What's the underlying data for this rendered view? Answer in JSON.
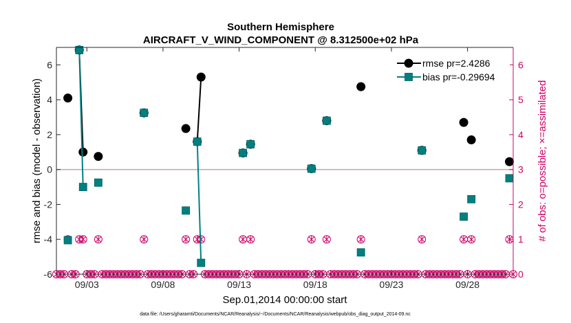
{
  "chart_data": {
    "type": "line",
    "title": "Southern Hemisphere",
    "subtitle": "AIRCRAFT_V_WIND_COMPONENT @ 8.312500e+02 hPa",
    "xlabel": "Sep.01,2014 00:00:00 start",
    "ylabel": "rmse and bias (model - observation)",
    "ylabel_right": "# of obs: o=possible; ×=assimilated",
    "footnote": "data file: /Users/gharamti/Documents/NCAR/Reanalysis/~/Documents/NCAR/Reanalysis/webpub/obs_diag_output_2014-09.nc",
    "xlim": [
      1.0,
      31.0
    ],
    "ylim": [
      -6,
      7
    ],
    "ylim_right": [
      0,
      6.5
    ],
    "x_ticks": [
      3,
      8,
      13,
      18,
      23,
      28
    ],
    "x_tick_labels": [
      "09/03",
      "09/08",
      "09/13",
      "09/18",
      "09/23",
      "09/28"
    ],
    "y_ticks": [
      -6,
      -4,
      -2,
      0,
      2,
      4,
      6
    ],
    "y_tick_labels": [
      "-6",
      "-4",
      "-2",
      "0",
      "2",
      "4",
      "6"
    ],
    "y_ticks_right": [
      0,
      1,
      2,
      3,
      4,
      5,
      6
    ],
    "y_tick_labels_right": [
      "0",
      "1",
      "2",
      "3",
      "4",
      "5",
      "6"
    ],
    "zero_line": 0,
    "legend_position": "top-right",
    "series": [
      {
        "name": "rmse pr=2.4286",
        "color": "#000000",
        "marker": "circle",
        "points": [
          [
            1.75,
            4.1
          ],
          [
            2.5,
            6.85
          ],
          [
            2.75,
            1.0
          ],
          [
            3.75,
            0.75
          ],
          [
            6.75,
            3.25
          ],
          [
            9.5,
            2.35
          ],
          [
            10.25,
            1.6
          ],
          [
            10.5,
            5.3
          ],
          [
            13.25,
            0.95
          ],
          [
            13.75,
            1.45
          ],
          [
            17.75,
            0.05
          ],
          [
            18.75,
            2.8
          ],
          [
            21.0,
            4.75
          ],
          [
            25.0,
            1.1
          ],
          [
            27.75,
            2.7
          ],
          [
            28.25,
            1.7
          ],
          [
            30.75,
            0.45
          ]
        ]
      },
      {
        "name": "bias pr=-0.29694",
        "color": "#008080",
        "marker": "square",
        "points": [
          [
            1.75,
            -4.05
          ],
          [
            2.5,
            6.85
          ],
          [
            2.75,
            -1.0
          ],
          [
            3.75,
            -0.75
          ],
          [
            6.75,
            3.25
          ],
          [
            9.5,
            -2.35
          ],
          [
            10.25,
            1.6
          ],
          [
            10.5,
            -5.35
          ],
          [
            13.25,
            0.95
          ],
          [
            13.75,
            1.45
          ],
          [
            17.75,
            0.05
          ],
          [
            18.75,
            2.8
          ],
          [
            21.0,
            -4.75
          ],
          [
            25.0,
            1.1
          ],
          [
            27.75,
            -2.7
          ],
          [
            28.25,
            -1.7
          ],
          [
            30.75,
            -0.5
          ]
        ]
      }
    ],
    "obs_count": {
      "color": "#cc0066",
      "possible_marker": "circle",
      "assimilated_marker": "x",
      "step": 0.25,
      "nonzero": [
        [
          1.75,
          1
        ],
        [
          2.5,
          1
        ],
        [
          2.75,
          1
        ],
        [
          3.75,
          1
        ],
        [
          6.75,
          1
        ],
        [
          9.5,
          1
        ],
        [
          10.25,
          1
        ],
        [
          10.5,
          1
        ],
        [
          13.25,
          1
        ],
        [
          13.75,
          1
        ],
        [
          17.75,
          1
        ],
        [
          18.75,
          1
        ],
        [
          21.0,
          1
        ],
        [
          25.0,
          1
        ],
        [
          27.75,
          1
        ],
        [
          28.25,
          1
        ],
        [
          30.75,
          1
        ]
      ]
    }
  }
}
